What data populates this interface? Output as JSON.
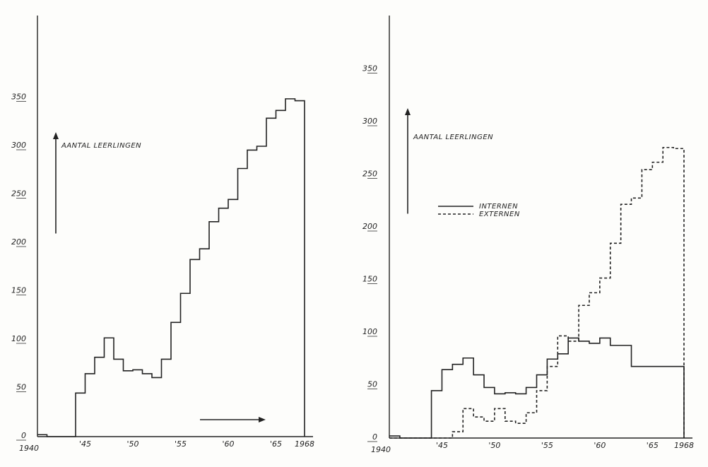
{
  "chart_data": [
    {
      "type": "step",
      "ylabel": "AANTAL LEERLINGEN",
      "x_tick_labels": [
        "1940",
        "'45",
        "'50",
        "'55",
        "'60",
        "'65",
        "1968"
      ],
      "y_tick_labels": [
        "0",
        "50",
        "100",
        "150",
        "200",
        "250",
        "300",
        "350"
      ],
      "ylim": [
        0,
        400
      ],
      "xlim": [
        1940,
        1968
      ],
      "series": [
        {
          "x": [
            1940,
            1941,
            1942,
            1943,
            1944,
            1945,
            1946,
            1947,
            1948,
            1949,
            1950,
            1951,
            1952,
            1953,
            1954,
            1955,
            1956,
            1957,
            1958,
            1959,
            1960,
            1961,
            1962,
            1963,
            1964,
            1965,
            1966,
            1967
          ],
          "values": [
            2,
            0,
            0,
            0,
            45,
            65,
            82,
            102,
            80,
            68,
            69,
            65,
            61,
            80,
            118,
            148,
            183,
            194,
            222,
            236,
            245,
            277,
            296,
            300,
            329,
            337,
            349,
            347
          ]
        }
      ]
    },
    {
      "type": "step",
      "ylabel": "AANTAL LEERLINGEN",
      "x_tick_labels": [
        "1940",
        "'45",
        "'50",
        "'55",
        "'60",
        "'65",
        "1968"
      ],
      "y_tick_labels": [
        "0",
        "50",
        "100",
        "150",
        "200",
        "250",
        "300",
        "350"
      ],
      "ylim": [
        0,
        400
      ],
      "xlim": [
        1940,
        1968
      ],
      "series": [
        {
          "name": "INTERNEN",
          "x": [
            1940,
            1941,
            1942,
            1943,
            1944,
            1945,
            1946,
            1947,
            1948,
            1949,
            1950,
            1951,
            1952,
            1953,
            1954,
            1955,
            1956,
            1957,
            1958,
            1959,
            1960,
            1961,
            1962,
            1963,
            1964,
            1965,
            1966,
            1967
          ],
          "values": [
            2,
            0,
            0,
            0,
            45,
            65,
            70,
            76,
            60,
            48,
            42,
            43,
            42,
            48,
            60,
            75,
            80,
            95,
            92,
            90,
            95,
            88,
            88,
            68,
            68,
            68,
            68,
            68
          ]
        },
        {
          "name": "EXTERNEN",
          "x": [
            1940,
            1941,
            1942,
            1943,
            1944,
            1945,
            1946,
            1947,
            1948,
            1949,
            1950,
            1951,
            1952,
            1953,
            1954,
            1955,
            1956,
            1957,
            1958,
            1959,
            1960,
            1961,
            1962,
            1963,
            1964,
            1965,
            1966,
            1967
          ],
          "values": [
            0,
            0,
            0,
            0,
            0,
            0,
            6,
            28,
            20,
            16,
            28,
            16,
            14,
            24,
            45,
            68,
            97,
            92,
            126,
            138,
            152,
            185,
            222,
            228,
            255,
            262,
            276,
            275
          ]
        }
      ]
    }
  ]
}
